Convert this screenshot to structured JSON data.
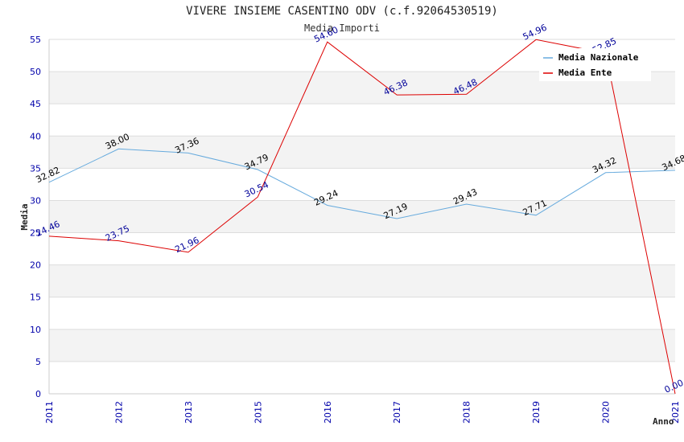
{
  "chart_data": {
    "type": "line",
    "title": "VIVERE INSIEME CASENTINO ODV (c.f.92064530519)",
    "subtitle": "Media Importi",
    "xlabel": "Anno",
    "ylabel": "Media",
    "categories": [
      "2011",
      "2012",
      "2013",
      "2015",
      "2016",
      "2017",
      "2018",
      "2019",
      "2020",
      "2021"
    ],
    "ylim": [
      0,
      55
    ],
    "yticks": [
      "0",
      "5",
      "10",
      "15",
      "20",
      "25",
      "30",
      "35",
      "40",
      "45",
      "50",
      "55"
    ],
    "grid": true,
    "legend_position": "top-right",
    "series": [
      {
        "name": "Media Nazionale",
        "color": "#66aadd",
        "label_color": "#000000",
        "values": [
          32.82,
          38.0,
          37.36,
          34.79,
          29.24,
          27.19,
          29.43,
          27.71,
          34.32,
          34.68
        ],
        "labels": [
          "32.82",
          "38.00",
          "37.36",
          "34.79",
          "29.24",
          "27.19",
          "29.43",
          "27.71",
          "34.32",
          "34.68"
        ]
      },
      {
        "name": "Media Ente",
        "color": "#dd0000",
        "label_color": "#000099",
        "values": [
          24.46,
          23.75,
          21.96,
          30.54,
          54.6,
          46.38,
          46.48,
          54.96,
          52.85,
          0.0
        ],
        "labels": [
          "24.46",
          "23.75",
          "21.96",
          "30.54",
          "54.60",
          "46.38",
          "46.48",
          "54.96",
          "52.85",
          "0.00"
        ]
      }
    ]
  }
}
